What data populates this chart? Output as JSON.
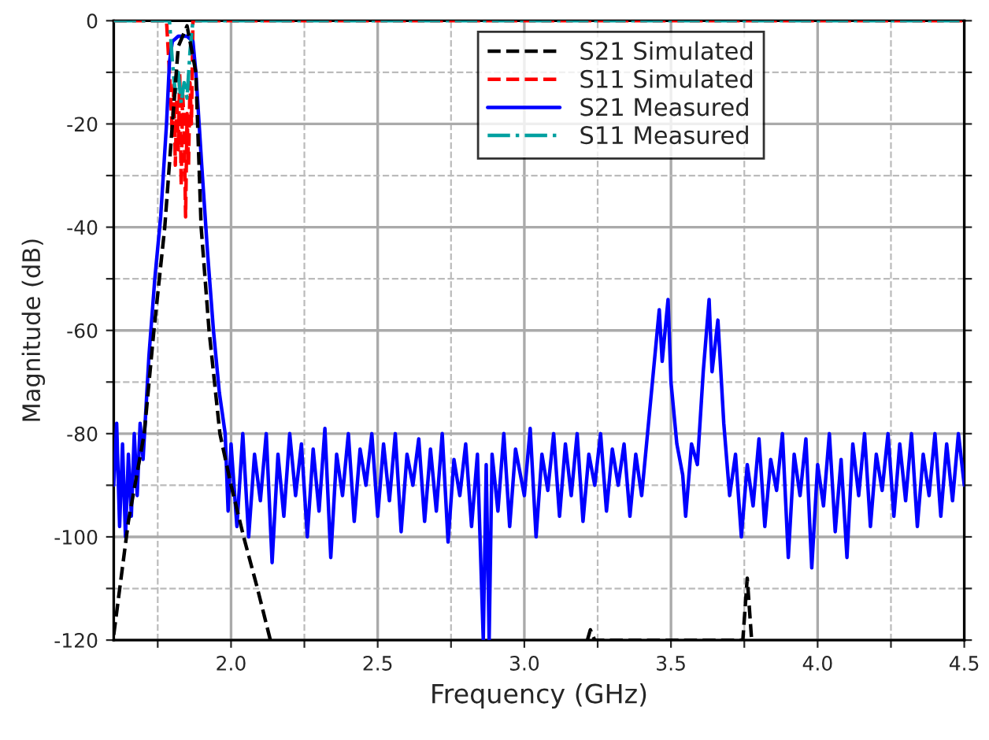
{
  "chart_data": {
    "type": "line",
    "xlabel": "Frequency (GHz)",
    "ylabel": "Magnitude (dB)",
    "xlim": [
      1.6,
      4.5
    ],
    "ylim": [
      -120,
      0
    ],
    "xticks": [
      {
        "value": 1.75,
        "label": null
      },
      {
        "value": 2.0,
        "label": "2.0"
      },
      {
        "value": 2.25,
        "label": null
      },
      {
        "value": 2.5,
        "label": "2.5"
      },
      {
        "value": 2.75,
        "label": null
      },
      {
        "value": 3.0,
        "label": "3.0"
      },
      {
        "value": 3.25,
        "label": null
      },
      {
        "value": 3.5,
        "label": "3.5"
      },
      {
        "value": 3.75,
        "label": null
      },
      {
        "value": 4.0,
        "label": "4.0"
      },
      {
        "value": 4.25,
        "label": null
      },
      {
        "value": 4.5,
        "label": "4.5"
      }
    ],
    "yticks": [
      -120,
      {
        "value": -110,
        "label": null
      },
      -100,
      {
        "value": -90,
        "label": null
      },
      -80,
      {
        "value": -70,
        "label": null
      },
      -60,
      {
        "value": -50,
        "label": null
      },
      -40,
      {
        "value": -30,
        "label": null
      },
      -20,
      {
        "value": -10,
        "label": null
      },
      0
    ],
    "grid": true,
    "legend": "top right",
    "series": [
      {
        "name": "S21 Simulated",
        "color": "#000000",
        "line_style": "dashed",
        "x": [
          1.6,
          1.65,
          1.704,
          1.737,
          1.774,
          1.8,
          1.82,
          1.85,
          1.88,
          1.898,
          1.925,
          1.962,
          2.0,
          2.043,
          2.09,
          2.134,
          2.2,
          3.215,
          3.225,
          3.24,
          3.745,
          3.76,
          3.775
        ],
        "values": [
          -119,
          -97,
          -80,
          -60,
          -40,
          -20,
          -5,
          -1,
          -10,
          -40,
          -60,
          -80,
          -90,
          -100,
          -110,
          -120,
          null,
          -120,
          -118,
          -120,
          -120,
          -108,
          -120
        ]
      },
      {
        "name": "S11 Simulated",
        "color": "#ff0000",
        "line_style": "dashed",
        "x": [
          1.6,
          1.78,
          1.79,
          1.8,
          1.805,
          1.81,
          1.815,
          1.82,
          1.825,
          1.83,
          1.835,
          1.84,
          1.845,
          1.85,
          1.855,
          1.86,
          1.865,
          1.87,
          4.5
        ],
        "values": [
          0,
          0,
          -10,
          -22,
          -12,
          -28,
          -15,
          -25,
          -10,
          -32,
          -14,
          -20,
          -38,
          -18,
          -28,
          -12,
          -20,
          0,
          0
        ]
      },
      {
        "name": "S21 Measured",
        "color": "#0000ff",
        "line_style": "solid",
        "x": [
          1.6,
          1.61,
          1.62,
          1.63,
          1.64,
          1.65,
          1.66,
          1.67,
          1.68,
          1.69,
          1.7,
          1.72,
          1.74,
          1.76,
          1.78,
          1.79,
          1.8,
          1.82,
          1.85,
          1.87,
          1.88,
          1.9,
          1.92,
          1.94,
          1.96,
          1.98,
          1.99,
          2.0,
          2.02,
          2.04,
          2.06,
          2.08,
          2.1,
          2.12,
          2.14,
          2.16,
          2.18,
          2.2,
          2.22,
          2.24,
          2.26,
          2.28,
          2.3,
          2.32,
          2.34,
          2.36,
          2.38,
          2.4,
          2.42,
          2.44,
          2.46,
          2.48,
          2.5,
          2.52,
          2.54,
          2.56,
          2.58,
          2.6,
          2.62,
          2.64,
          2.66,
          2.68,
          2.7,
          2.72,
          2.74,
          2.76,
          2.78,
          2.8,
          2.82,
          2.84,
          2.86,
          2.87,
          2.88,
          2.89,
          2.91,
          2.93,
          2.95,
          2.97,
          3.0,
          3.02,
          3.04,
          3.06,
          3.08,
          3.1,
          3.12,
          3.14,
          3.16,
          3.18,
          3.2,
          3.22,
          3.24,
          3.26,
          3.28,
          3.3,
          3.32,
          3.34,
          3.36,
          3.38,
          3.4,
          3.42,
          3.44,
          3.46,
          3.47,
          3.49,
          3.5,
          3.52,
          3.54,
          3.55,
          3.57,
          3.59,
          3.61,
          3.63,
          3.64,
          3.66,
          3.68,
          3.7,
          3.72,
          3.74,
          3.76,
          3.78,
          3.8,
          3.82,
          3.84,
          3.86,
          3.88,
          3.9,
          3.92,
          3.94,
          3.96,
          3.98,
          4.0,
          4.02,
          4.04,
          4.06,
          4.08,
          4.1,
          4.12,
          4.14,
          4.16,
          4.18,
          4.2,
          4.22,
          4.24,
          4.26,
          4.28,
          4.3,
          4.32,
          4.34,
          4.36,
          4.38,
          4.4,
          4.42,
          4.44,
          4.46,
          4.48,
          4.5
        ],
        "values": [
          -90,
          -78,
          -98,
          -82,
          -100,
          -84,
          -96,
          -80,
          -92,
          -78,
          -85,
          -65,
          -50,
          -38,
          -20,
          -8,
          -4,
          -3,
          -3,
          -4,
          -10,
          -28,
          -45,
          -60,
          -72,
          -80,
          -95,
          -82,
          -98,
          -80,
          -100,
          -84,
          -93,
          -80,
          -105,
          -84,
          -96,
          -80,
          -92,
          -82,
          -100,
          -83,
          -95,
          -79,
          -104,
          -84,
          -92,
          -80,
          -97,
          -83,
          -90,
          -80,
          -96,
          -82,
          -93,
          -80,
          -99,
          -84,
          -90,
          -81,
          -97,
          -83,
          -95,
          -80,
          -101,
          -85,
          -92,
          -82,
          -98,
          -84,
          -120,
          -86,
          -120,
          -84,
          -95,
          -80,
          -98,
          -83,
          -92,
          -79,
          -100,
          -84,
          -91,
          -80,
          -96,
          -82,
          -92,
          -80,
          -97,
          -84,
          -90,
          -80,
          -95,
          -83,
          -90,
          -82,
          -96,
          -84,
          -92,
          -80,
          -68,
          -56,
          -66,
          -54,
          -70,
          -82,
          -88,
          -96,
          -82,
          -86,
          -68,
          -54,
          -68,
          -58,
          -78,
          -92,
          -84,
          -100,
          -86,
          -94,
          -81,
          -98,
          -85,
          -91,
          -80,
          -104,
          -84,
          -92,
          -81,
          -106,
          -86,
          -94,
          -80,
          -99,
          -85,
          -104,
          -82,
          -92,
          -80,
          -98,
          -84,
          -91,
          -80,
          -96,
          -82,
          -93,
          -80,
          -98,
          -84,
          -92,
          -80,
          -96,
          -82,
          -93,
          -80,
          -90
        ]
      },
      {
        "name": "S11 Measured",
        "color": "#00a0a0",
        "line_style": "dashdot",
        "x": [
          1.6,
          1.79,
          1.8,
          1.81,
          1.82,
          1.83,
          1.84,
          1.85,
          1.86,
          1.87,
          4.5
        ],
        "values": [
          0,
          0,
          -8,
          -14,
          -10,
          -16,
          -12,
          -15,
          -6,
          0,
          0
        ]
      }
    ]
  }
}
